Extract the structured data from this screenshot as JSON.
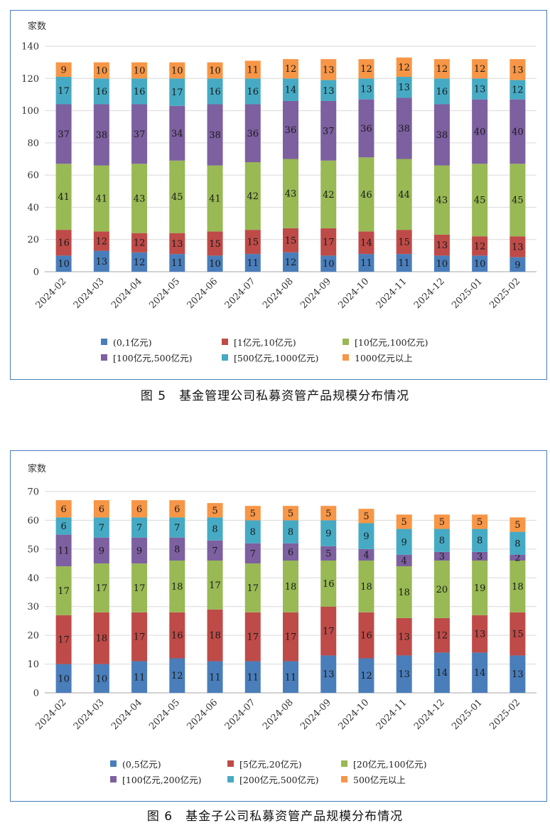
{
  "chart_data": [
    {
      "type": "bar",
      "stacked": true,
      "title": "",
      "ylabel": "家数",
      "ylim": [
        0,
        140
      ],
      "yticks": [
        0,
        20,
        40,
        60,
        80,
        100,
        120,
        140
      ],
      "grid": true,
      "legend_position": "bottom",
      "categories": [
        "2024-02",
        "2024-03",
        "2024-04",
        "2024-05",
        "2024-06",
        "2024-07",
        "2024-08",
        "2024-09",
        "2024-10",
        "2024-11",
        "2024-12",
        "2025-01",
        "2025-02"
      ],
      "series": [
        {
          "name": "(0,1亿元)",
          "color": "#4a7ebb",
          "values": [
            10,
            13,
            12,
            11,
            10,
            11,
            12,
            10,
            11,
            11,
            10,
            10,
            9
          ]
        },
        {
          "name": "[1亿元,10亿元)",
          "color": "#be4b48",
          "values": [
            16,
            12,
            12,
            13,
            15,
            15,
            15,
            17,
            14,
            15,
            13,
            12,
            13
          ]
        },
        {
          "name": "[10亿元,100亿元)",
          "color": "#98b954",
          "values": [
            41,
            41,
            43,
            45,
            41,
            42,
            43,
            42,
            46,
            44,
            43,
            45,
            45
          ]
        },
        {
          "name": "[100亿元,500亿元)",
          "color": "#7d60a0",
          "values": [
            37,
            38,
            37,
            34,
            38,
            36,
            36,
            37,
            36,
            38,
            38,
            40,
            40
          ]
        },
        {
          "name": "[500亿元,1000亿元)",
          "color": "#46aac4",
          "values": [
            17,
            16,
            16,
            17,
            16,
            16,
            14,
            13,
            13,
            13,
            16,
            13,
            12
          ]
        },
        {
          "name": "1000亿元以上",
          "color": "#f79646",
          "values": [
            9,
            10,
            10,
            10,
            10,
            11,
            12,
            13,
            12,
            12,
            12,
            12,
            13
          ]
        }
      ]
    },
    {
      "type": "bar",
      "stacked": true,
      "title": "",
      "ylabel": "家数",
      "ylim": [
        0,
        70
      ],
      "yticks": [
        0,
        10,
        20,
        30,
        40,
        50,
        60,
        70
      ],
      "grid": true,
      "legend_position": "bottom",
      "categories": [
        "2024-02",
        "2024-03",
        "2024-04",
        "2024-05",
        "2024-06",
        "2024-07",
        "2024-08",
        "2024-09",
        "2024-10",
        "2024-11",
        "2024-12",
        "2025-01",
        "2025-02"
      ],
      "series": [
        {
          "name": "(0,5亿元)",
          "color": "#4a7ebb",
          "values": [
            10,
            10,
            11,
            12,
            11,
            11,
            11,
            13,
            12,
            13,
            14,
            14,
            13
          ]
        },
        {
          "name": "[5亿元,20亿元)",
          "color": "#be4b48",
          "values": [
            17,
            18,
            17,
            16,
            18,
            17,
            17,
            17,
            16,
            13,
            12,
            13,
            15
          ]
        },
        {
          "name": "[20亿元,100亿元)",
          "color": "#98b954",
          "values": [
            17,
            17,
            17,
            18,
            17,
            17,
            18,
            16,
            18,
            18,
            20,
            19,
            18
          ]
        },
        {
          "name": "[100亿元,200亿元)",
          "color": "#7d60a0",
          "values": [
            11,
            9,
            9,
            8,
            7,
            7,
            6,
            5,
            4,
            4,
            3,
            3,
            2
          ]
        },
        {
          "name": "[200亿元,500亿元)",
          "color": "#46aac4",
          "values": [
            6,
            7,
            7,
            7,
            8,
            8,
            8,
            9,
            9,
            9,
            8,
            8,
            8
          ]
        },
        {
          "name": "500亿元以上",
          "color": "#f79646",
          "values": [
            6,
            6,
            6,
            6,
            5,
            5,
            5,
            5,
            5,
            5,
            5,
            5,
            5
          ]
        }
      ]
    }
  ],
  "captions": {
    "figure1": "图 5　基金管理公司私募资管产品规模分布情况",
    "figure2": "图 6　基金子公司私募资管产品规模分布情况"
  }
}
